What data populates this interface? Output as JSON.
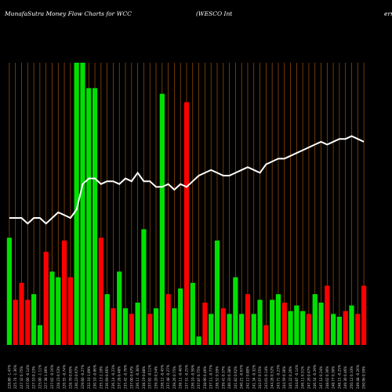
{
  "title": {
    "left": "MunafaSutra  Money Flow  Charts for WCC",
    "middle": "(WESCO Int",
    "right": "ern"
  },
  "chart_data": {
    "type": "bar",
    "title": "MunafaSutra  Money Flow  Charts for WCC (WESCO International, Inc.)",
    "xlabel": "",
    "ylabel": "",
    "ylim": [
      0,
      100
    ],
    "grid": true,
    "categories": [
      "17-03-2025",
      "17-03-2025",
      "17-03-2025",
      "17-03-2025",
      "17-03-2025",
      "17-03-2025",
      "17-03-2025",
      "17-03-2025",
      "17-03-2025",
      "17-03-2025",
      "17-03-2025",
      "17-03-2025",
      "17-03-2025",
      "17-03-2025",
      "17-03-2025",
      "17-03-2025",
      "17-03-2025",
      "17-03-2025",
      "17-03-2025",
      "17-03-2025",
      "17-03-2025",
      "17-03-2025",
      "17-03-2025",
      "17-03-2025",
      "17-03-2025",
      "17-03-2025",
      "17-03-2025",
      "17-03-2025",
      "17-03-2025",
      "17-03-2025",
      "17-03-2025",
      "17-03-2025",
      "17-03-2025",
      "17-03-2025",
      "17-03-2025",
      "17-03-2025",
      "17-03-2025",
      "17-03-2025",
      "17-03-2025",
      "17-03-2025",
      "17-03-2025",
      "17-03-2025",
      "17-03-2025",
      "17-03-2025",
      "17-03-2025",
      "17-03-2025",
      "17-03-2025",
      "17-03-2025",
      "17-03-2025",
      "17-03-2025",
      "17-03-2025",
      "17-03-2025",
      "17-03-2025",
      "17-03-2025",
      "17-03-2025",
      "17-03-2025",
      "17-03-2025",
      "17-03-2025",
      "17-03-2025"
    ],
    "tick_labels": [
      "228.86 -1.47%",
      "225.74 -1.36%",
      "227.32 0.75%",
      "227.00 -0.14%",
      "227.53 0.23%",
      "225.00 -1.11%",
      "227.38 1.06%",
      "227.02 -0.16%",
      "228.23 0.53%",
      "226.55 -0.74%",
      "228.70 0.95%",
      "230.23 0.67%",
      "229.60 -0.27%",
      "232.10 1.09%",
      "230.10 -0.86%",
      "235.13 2.19%",
      "236.69 0.66%",
      "236.14 -0.23%",
      "237.28 0.48%",
      "235.42 -0.78%",
      "237.00 0.67%",
      "236.11 -0.38%",
      "238.19 0.88%",
      "237.92 -0.11%",
      "239.20 0.54%",
      "238.12 -0.45%",
      "237.48 -0.27%",
      "239.26 0.75%",
      "238.11 -0.48%",
      "237.51 -0.25%",
      "236.10 -0.59%",
      "237.87 0.75%",
      "238.96 0.46%",
      "237.11 -0.77%",
      "238.52 0.59%",
      "239.41 0.37%",
      "240.33 0.38%",
      "241.82 0.62%",
      "240.21 -0.67%",
      "242.12 0.80%",
      "241.34 -0.32%",
      "242.67 0.55%",
      "243.01 0.14%",
      "244.28 0.52%",
      "243.71 -0.23%",
      "244.59 0.36%",
      "245.22 0.26%",
      "244.87 -0.14%",
      "246.11 0.51%",
      "247.26 0.47%",
      "246.54 -0.29%",
      "247.12 0.24%",
      "248.02 0.36%",
      "248.77 0.30%",
      "248.15 -0.25%",
      "249.30 0.46%",
      "250.12 0.33%",
      "249.48 -0.26%",
      "250.96 0.59%"
    ],
    "values": [
      38,
      16,
      22,
      16,
      18,
      7,
      33,
      26,
      24,
      37,
      24,
      100,
      100,
      91,
      91,
      38,
      18,
      13,
      26,
      13,
      11,
      15,
      41,
      11,
      13,
      89,
      18,
      13,
      20,
      86,
      22,
      3,
      15,
      11,
      37,
      13,
      11,
      24,
      11,
      18,
      11,
      16,
      7,
      16,
      18,
      15,
      12,
      14,
      12,
      11,
      18,
      15,
      21,
      11,
      10,
      12,
      14,
      11,
      21
    ],
    "bar_colors": [
      "#00e000",
      "#ff0000",
      "#ff0000",
      "#ff0000",
      "#00e000",
      "#00e000",
      "#ff0000",
      "#00e000",
      "#00e000",
      "#ff0000",
      "#ff0000",
      "#00e000",
      "#00e000",
      "#00e000",
      "#00e000",
      "#ff0000",
      "#00e000",
      "#ff0000",
      "#00e000",
      "#00e000",
      "#ff0000",
      "#00e000",
      "#00e000",
      "#ff0000",
      "#00e000",
      "#00e000",
      "#ff0000",
      "#00e000",
      "#00e000",
      "#ff0000",
      "#00e000",
      "#00e000",
      "#ff0000",
      "#00e000",
      "#00e000",
      "#ff0000",
      "#00e000",
      "#00e000",
      "#00e000",
      "#ff0000",
      "#00e000",
      "#00e000",
      "#ff0000",
      "#00e000",
      "#00e000",
      "#ff0000",
      "#00e000",
      "#00e000",
      "#00e000",
      "#ff0000",
      "#00e000",
      "#00e000",
      "#ff0000",
      "#00e000",
      "#00e000",
      "#ff0000",
      "#00e000",
      "#ff0000",
      "#ff0000"
    ],
    "line": {
      "name": "price",
      "color": "#ffffff",
      "values": [
        45,
        45,
        45,
        43,
        45,
        45,
        43,
        45,
        47,
        46,
        45,
        48,
        57,
        59,
        59,
        57,
        58,
        58,
        57,
        59,
        58,
        61,
        58,
        58,
        56,
        56,
        57,
        55,
        57,
        56,
        58,
        60,
        61,
        62,
        61,
        60,
        60,
        61,
        62,
        63,
        62,
        61,
        64,
        65,
        66,
        66,
        67,
        68,
        69,
        70,
        71,
        72,
        71,
        72,
        73,
        73,
        74,
        73,
        72
      ]
    },
    "colors": {
      "up": "#00e000",
      "down": "#ff0000",
      "grid": "#a0520b",
      "background": "#000000"
    }
  }
}
